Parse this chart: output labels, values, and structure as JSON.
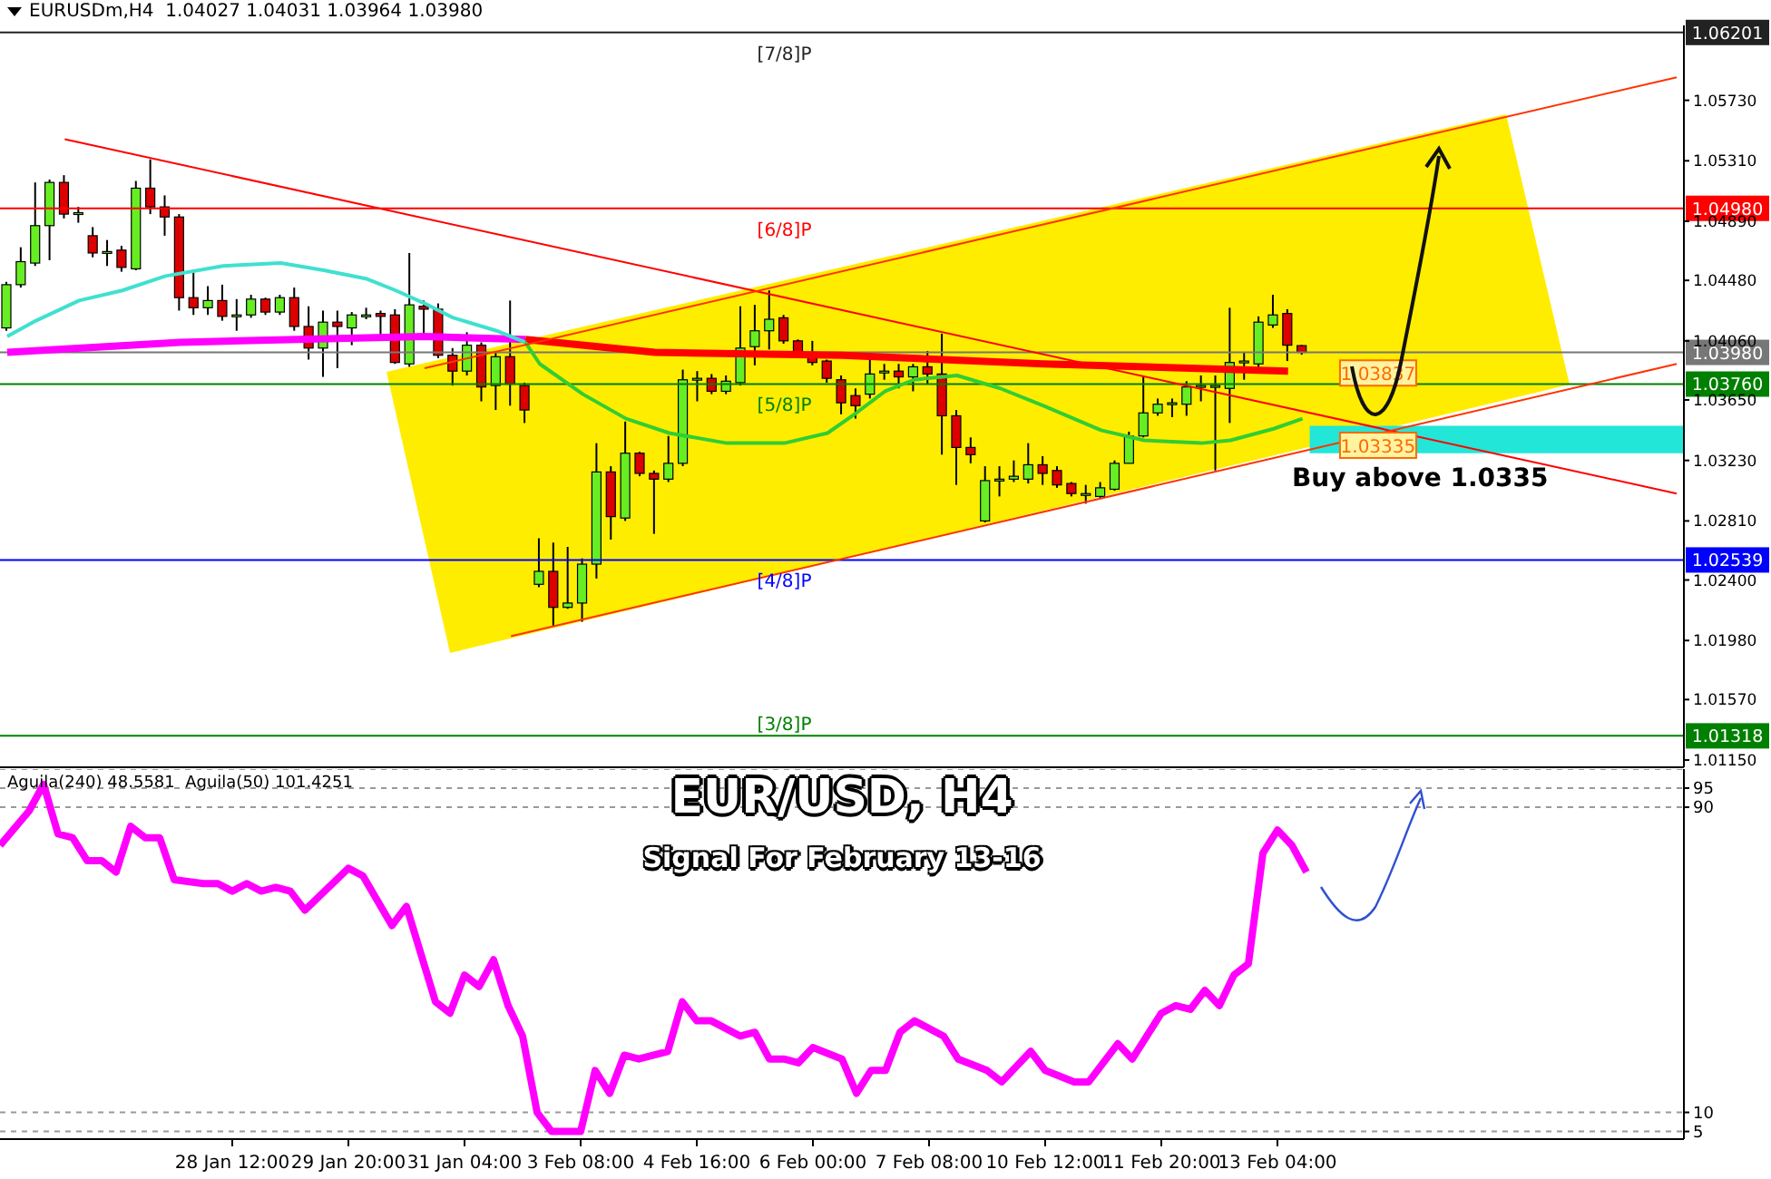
{
  "chart_data": [
    {
      "type": "candlestick",
      "categories": [
        null,
        null,
        null,
        null,
        null,
        null,
        null,
        null,
        null,
        null,
        null,
        null,
        null,
        null,
        null,
        null,
        null,
        null,
        null,
        null,
        null,
        null,
        null,
        null,
        null,
        null,
        null,
        null,
        null,
        null,
        null,
        null,
        null,
        null,
        null,
        null,
        null,
        null,
        null,
        null,
        null,
        null,
        null,
        null,
        null,
        null,
        null,
        null,
        null,
        null,
        null,
        null,
        null,
        null,
        null,
        null,
        null,
        null,
        null,
        null,
        null,
        null,
        null,
        null,
        null,
        null,
        null,
        null,
        null,
        null,
        null,
        null,
        null,
        null,
        null,
        null,
        null,
        null,
        null,
        null,
        null,
        null,
        null,
        null,
        null,
        null,
        null,
        null,
        null,
        null,
        null,
        null,
        null,
        null,
        null,
        null,
        null,
        null,
        null,
        null,
        null,
        null,
        null,
        null,
        null,
        null,
        null,
        null,
        null,
        null,
        null,
        null,
        null,
        null,
        null,
        null,
        null
      ],
      "ohlc": [
        [
          1.0415,
          1.0447,
          1.0413,
          1.0445
        ],
        [
          1.0445,
          1.0471,
          1.0443,
          1.0461
        ],
        [
          1.046,
          1.0516,
          1.0458,
          1.0486
        ],
        [
          1.0486,
          1.0518,
          1.0462,
          1.0516
        ],
        [
          1.0516,
          1.0521,
          1.0491,
          1.0494
        ],
        [
          1.0495,
          1.0499,
          1.0488,
          1.0495
        ],
        [
          1.0479,
          1.0485,
          1.0464,
          1.0467
        ],
        [
          1.0468,
          1.0476,
          1.0458,
          1.0468
        ],
        [
          1.0469,
          1.0472,
          1.0454,
          1.0457
        ],
        [
          1.0456,
          1.0517,
          1.0455,
          1.0512
        ],
        [
          1.0512,
          1.0532,
          1.0494,
          1.0499
        ],
        [
          1.0499,
          1.0507,
          1.0479,
          1.0492
        ],
        [
          1.0492,
          1.0494,
          1.0427,
          1.0436
        ],
        [
          1.0436,
          1.0455,
          1.0424,
          1.0429
        ],
        [
          1.0429,
          1.0444,
          1.0424,
          1.0434
        ],
        [
          1.0434,
          1.0445,
          1.042,
          1.0423
        ],
        [
          1.0424,
          1.0435,
          1.0413,
          1.0424
        ],
        [
          1.0424,
          1.0438,
          1.0422,
          1.0435
        ],
        [
          1.0435,
          1.0436,
          1.0424,
          1.0426
        ],
        [
          1.0426,
          1.0438,
          1.0424,
          1.0436
        ],
        [
          1.0436,
          1.0443,
          1.0413,
          1.0416
        ],
        [
          1.0416,
          1.043,
          1.0393,
          1.0401
        ],
        [
          1.0401,
          1.0427,
          1.0381,
          1.0419
        ],
        [
          1.0419,
          1.0427,
          1.0387,
          1.0416
        ],
        [
          1.0415,
          1.0426,
          1.0403,
          1.0424
        ],
        [
          1.0424,
          1.0429,
          1.0421,
          1.0424
        ],
        [
          1.0425,
          1.0427,
          1.0409,
          1.0423
        ],
        [
          1.0424,
          1.0428,
          1.039,
          1.0391
        ],
        [
          1.039,
          1.0467,
          1.0388,
          1.0431
        ],
        [
          1.043,
          1.0434,
          1.0408,
          1.0428
        ],
        [
          1.0428,
          1.0432,
          1.0394,
          1.0396
        ],
        [
          1.0396,
          1.0401,
          1.0375,
          1.0385
        ],
        [
          1.0385,
          1.0412,
          1.0382,
          1.0403
        ],
        [
          1.0403,
          1.0405,
          1.0364,
          1.0374
        ],
        [
          1.0375,
          1.0398,
          1.0358,
          1.0395
        ],
        [
          1.0395,
          1.0434,
          1.0361,
          1.0376
        ],
        [
          1.0375,
          1.0377,
          1.0349,
          1.0358
        ],
        [
          1.0237,
          1.0269,
          1.0235,
          1.0246
        ],
        [
          1.0246,
          1.0266,
          1.0208,
          1.0221
        ],
        [
          1.0221,
          1.0263,
          1.022,
          1.0224
        ],
        [
          1.0224,
          1.0255,
          1.0211,
          1.0251
        ],
        [
          1.0251,
          1.0335,
          1.0241,
          1.0315
        ],
        [
          1.0315,
          1.0319,
          1.0268,
          1.0284
        ],
        [
          1.0283,
          1.035,
          1.0281,
          1.0328
        ],
        [
          1.0328,
          1.0329,
          1.0312,
          1.0314
        ],
        [
          1.0314,
          1.0316,
          1.0272,
          1.031
        ],
        [
          1.031,
          1.034,
          1.0308,
          1.0321
        ],
        [
          1.0321,
          1.0386,
          1.0319,
          1.0379
        ],
        [
          1.038,
          1.0385,
          1.0364,
          1.038
        ],
        [
          1.038,
          1.0383,
          1.0369,
          1.0371
        ],
        [
          1.0371,
          1.0382,
          1.0369,
          1.0378
        ],
        [
          1.0377,
          1.043,
          1.0375,
          1.0401
        ],
        [
          1.0402,
          1.0431,
          1.0389,
          1.0413
        ],
        [
          1.0413,
          1.0441,
          1.04,
          1.0421
        ],
        [
          1.0422,
          1.0424,
          1.0404,
          1.0406
        ],
        [
          1.0406,
          1.0407,
          1.0396,
          1.0398
        ],
        [
          1.0398,
          1.0406,
          1.0389,
          1.0391
        ],
        [
          1.0392,
          1.0393,
          1.0377,
          1.038
        ],
        [
          1.0379,
          1.0382,
          1.0355,
          1.0363
        ],
        [
          1.0368,
          1.0373,
          1.0352,
          1.0361
        ],
        [
          1.0369,
          1.0395,
          1.0366,
          1.0383
        ],
        [
          1.0385,
          1.039,
          1.0379,
          1.0385
        ],
        [
          1.0385,
          1.039,
          1.0373,
          1.0381
        ],
        [
          1.0381,
          1.039,
          1.0371,
          1.0388
        ],
        [
          1.0388,
          1.0399,
          1.0376,
          1.0383
        ],
        [
          1.0383,
          1.0411,
          1.0327,
          1.0354
        ],
        [
          1.0354,
          1.0358,
          1.0306,
          1.0332
        ],
        [
          1.0332,
          1.0339,
          1.0321,
          1.0327
        ],
        [
          1.0281,
          1.0319,
          1.028,
          1.0309
        ],
        [
          1.031,
          1.0319,
          1.0298,
          1.031
        ],
        [
          1.031,
          1.0323,
          1.0308,
          1.0312
        ],
        [
          1.031,
          1.0335,
          1.0307,
          1.032
        ],
        [
          1.032,
          1.0326,
          1.0306,
          1.0314
        ],
        [
          1.0316,
          1.0319,
          1.0304,
          1.0306
        ],
        [
          1.0307,
          1.0308,
          1.0298,
          1.03
        ],
        [
          1.03,
          1.0306,
          1.0293,
          1.03
        ],
        [
          1.0298,
          1.0308,
          1.0297,
          1.0304
        ],
        [
          1.0303,
          1.0323,
          1.0302,
          1.0321
        ],
        [
          1.0321,
          1.0343,
          1.0321,
          1.034
        ],
        [
          1.034,
          1.0382,
          1.0339,
          1.0356
        ],
        [
          1.0356,
          1.0366,
          1.0354,
          1.0362
        ],
        [
          1.0363,
          1.0366,
          1.0353,
          1.0363
        ],
        [
          1.0362,
          1.0378,
          1.0354,
          1.0374
        ],
        [
          1.0375,
          1.0382,
          1.0364,
          1.0375
        ],
        [
          1.0375,
          1.0382,
          1.0316,
          1.0375
        ],
        [
          1.0373,
          1.0429,
          1.0349,
          1.0391
        ],
        [
          1.0392,
          1.0398,
          1.0379,
          1.0392
        ],
        [
          1.039,
          1.0423,
          1.0387,
          1.0419
        ],
        [
          1.0417,
          1.0438,
          1.0415,
          1.0424
        ],
        [
          1.0425,
          1.0428,
          1.0392,
          1.0403
        ],
        [
          1.04027,
          1.04031,
          1.03964,
          1.0398
        ],
        null,
        null,
        null,
        null,
        null,
        null,
        null,
        null,
        null,
        null,
        null,
        null,
        null,
        null,
        null,
        null,
        null,
        null,
        null,
        null,
        null,
        null,
        null,
        null,
        null,
        null
      ],
      "series": [
        {
          "type": "line",
          "color": "#ff00ff",
          "values": [
            1.0398,
            null,
            null,
            null,
            null,
            null,
            null,
            null,
            null,
            null,
            null,
            null,
            1.0405,
            null,
            null,
            null,
            null,
            null,
            null,
            null,
            null,
            null,
            null,
            null,
            null,
            null,
            null,
            null,
            null,
            1.0409,
            null,
            null,
            null,
            null,
            null,
            null,
            1.0407,
            null,
            null,
            null,
            null,
            null,
            null,
            null,
            null,
            null,
            null,
            null,
            null,
            null,
            null,
            null,
            null,
            null,
            null,
            null,
            null,
            null,
            null,
            null,
            null,
            null,
            null,
            null,
            null,
            null,
            null,
            null,
            null,
            null,
            null,
            null,
            null,
            null,
            null,
            null,
            null,
            null,
            null,
            null,
            null,
            null,
            null,
            null,
            null,
            null,
            null,
            null,
            null,
            null,
            null,
            null,
            null,
            null,
            null,
            null,
            null,
            null,
            null,
            null,
            null,
            null,
            null,
            null,
            null,
            null,
            null,
            null,
            null,
            null,
            null,
            null,
            null,
            null,
            null,
            null,
            null
          ]
        },
        {
          "type": "line",
          "color": "#ff0000",
          "values": [
            null,
            null,
            null,
            null,
            null,
            null,
            null,
            null,
            null,
            null,
            null,
            null,
            null,
            null,
            null,
            null,
            null,
            null,
            null,
            null,
            null,
            null,
            null,
            null,
            null,
            null,
            null,
            null,
            null,
            null,
            null,
            null,
            null,
            null,
            null,
            null,
            1.0407,
            null,
            null,
            null,
            null,
            null,
            null,
            null,
            null,
            1.0398,
            null,
            null,
            null,
            null,
            null,
            null,
            null,
            null,
            null,
            null,
            null,
            null,
            1.0396,
            null,
            null,
            null,
            null,
            null,
            null,
            null,
            null,
            null,
            null,
            null,
            null,
            null,
            1.039,
            null,
            null,
            null,
            null,
            null,
            null,
            null,
            null,
            null,
            null,
            null,
            null,
            null,
            null,
            null,
            null,
            1.0385,
            null,
            null,
            null,
            null,
            null,
            null,
            null,
            null,
            null,
            null,
            null,
            null,
            null,
            null,
            null,
            null,
            null,
            null,
            null,
            null,
            null,
            null,
            null,
            null,
            null,
            null,
            null
          ]
        },
        {
          "type": "line",
          "color": "#40e0d0",
          "values": [
            1.0409,
            null,
            1.042,
            null,
            null,
            1.0434,
            null,
            null,
            1.0441,
            null,
            null,
            1.0451,
            null,
            null,
            null,
            1.0458,
            null,
            null,
            null,
            1.046,
            null,
            null,
            1.0455,
            null,
            null,
            1.0449,
            null,
            1.0441,
            null,
            1.0432,
            null,
            1.0422,
            null,
            null,
            1.0413,
            null,
            1.0405,
            null,
            null,
            null,
            null,
            null,
            null,
            null,
            null,
            null,
            null,
            null,
            null,
            null,
            null,
            null,
            null,
            null,
            null,
            null,
            null,
            null,
            null,
            null,
            null,
            null,
            null,
            null,
            null,
            null,
            null,
            null,
            null,
            null,
            null,
            null,
            null,
            null,
            null,
            null,
            null,
            null,
            null,
            null,
            null,
            null,
            null,
            null,
            null,
            null,
            null,
            null,
            null,
            null,
            null,
            null,
            null,
            null,
            null,
            null,
            null,
            null,
            null,
            null,
            null,
            null,
            null,
            null,
            null,
            null,
            null,
            null,
            null,
            null,
            null,
            null,
            null,
            null,
            null,
            null,
            null
          ]
        },
        {
          "type": "line",
          "color": "#32cd32",
          "values": [
            null,
            null,
            null,
            null,
            null,
            null,
            null,
            null,
            null,
            null,
            null,
            null,
            null,
            null,
            null,
            null,
            null,
            null,
            null,
            null,
            null,
            null,
            null,
            null,
            null,
            null,
            null,
            null,
            null,
            null,
            null,
            null,
            null,
            null,
            null,
            null,
            1.0405,
            1.039,
            null,
            null,
            1.0369,
            null,
            null,
            1.0352,
            null,
            null,
            1.0342,
            null,
            null,
            null,
            1.0335,
            null,
            null,
            null,
            1.0335,
            null,
            null,
            1.0342,
            null,
            1.0356,
            null,
            1.0371,
            null,
            1.0379,
            null,
            null,
            1.0382,
            null,
            null,
            1.0373,
            null,
            null,
            1.0361,
            null,
            null,
            null,
            1.0344,
            null,
            null,
            1.0337,
            null,
            null,
            null,
            1.0335,
            null,
            1.0337,
            null,
            null,
            1.0345,
            null,
            1.0352,
            null,
            null,
            null,
            null,
            null,
            null,
            null,
            null,
            null,
            null,
            null,
            null,
            null,
            null,
            null,
            null,
            null,
            null,
            null,
            null,
            null,
            null,
            null,
            null,
            null,
            null
          ]
        },
        {
          "type": "line",
          "color": "#ff0000",
          "values": [
            null,
            null,
            null,
            null,
            1.0546,
            null,
            null,
            null,
            null,
            null,
            null,
            null,
            null,
            null,
            null,
            null,
            null,
            null,
            null,
            null,
            null,
            null,
            null,
            null,
            null,
            null,
            null,
            null,
            null,
            null,
            null,
            null,
            null,
            null,
            null,
            null,
            null,
            null,
            null,
            null,
            null,
            null,
            null,
            null,
            null,
            null,
            null,
            null,
            null,
            null,
            null,
            null,
            null,
            null,
            null,
            null,
            null,
            null,
            null,
            null,
            null,
            null,
            null,
            null,
            null,
            null,
            null,
            null,
            null,
            null,
            null,
            null,
            null,
            null,
            null,
            null,
            null,
            null,
            null,
            null,
            null,
            null,
            null,
            null,
            null,
            null,
            null,
            null,
            null,
            null,
            null,
            null,
            null,
            null,
            null,
            null,
            null,
            null,
            null,
            null,
            null,
            null,
            null,
            null,
            null,
            null,
            null,
            null,
            null,
            null,
            null,
            null,
            null,
            null,
            null,
            null,
            1.03
          ]
        },
        {
          "type": "line",
          "color": "#ff3300",
          "values": [
            null,
            null,
            null,
            null,
            null,
            null,
            null,
            null,
            null,
            null,
            null,
            null,
            null,
            null,
            null,
            null,
            null,
            null,
            null,
            null,
            null,
            null,
            null,
            null,
            null,
            null,
            null,
            null,
            null,
            1.0387,
            null,
            null,
            null,
            null,
            null,
            null,
            null,
            null,
            null,
            null,
            null,
            null,
            null,
            null,
            null,
            null,
            null,
            null,
            null,
            null,
            null,
            null,
            null,
            null,
            null,
            null,
            null,
            null,
            null,
            null,
            null,
            null,
            null,
            null,
            null,
            null,
            null,
            null,
            null,
            null,
            null,
            null,
            null,
            null,
            null,
            null,
            null,
            null,
            null,
            null,
            null,
            null,
            null,
            null,
            null,
            null,
            null,
            null,
            null,
            null,
            null,
            null,
            null,
            null,
            null,
            null,
            null,
            null,
            null,
            null,
            null,
            null,
            null,
            null,
            null,
            null,
            null,
            null,
            null,
            null,
            null,
            null,
            null,
            null,
            null,
            null,
            1.0589
          ]
        },
        {
          "type": "line",
          "color": "#ff3300",
          "values": [
            null,
            null,
            null,
            null,
            null,
            null,
            null,
            null,
            null,
            null,
            null,
            null,
            null,
            null,
            null,
            null,
            null,
            null,
            null,
            null,
            null,
            null,
            null,
            null,
            null,
            null,
            null,
            null,
            null,
            null,
            null,
            null,
            null,
            null,
            null,
            1.0201,
            null,
            null,
            null,
            null,
            null,
            null,
            null,
            null,
            null,
            null,
            null,
            null,
            null,
            null,
            null,
            null,
            null,
            null,
            null,
            null,
            null,
            null,
            null,
            null,
            null,
            null,
            null,
            null,
            null,
            null,
            null,
            null,
            null,
            null,
            null,
            null,
            null,
            null,
            null,
            null,
            null,
            null,
            null,
            null,
            null,
            null,
            null,
            null,
            null,
            null,
            null,
            null,
            null,
            null,
            null,
            null,
            null,
            null,
            null,
            null,
            null,
            null,
            null,
            null,
            null,
            null,
            null,
            null,
            null,
            null,
            null,
            null,
            null,
            null,
            null,
            null,
            null,
            null,
            null,
            null,
            1.039
          ]
        }
      ],
      "ylim": [
        1.011,
        1.0625
      ],
      "yticks": [
        {
          "value": 1.0573,
          "label": "1.05730"
        },
        {
          "value": 1.0531,
          "label": "1.05310"
        },
        {
          "value": 1.0489,
          "label": "1.04890"
        },
        {
          "value": 1.0448,
          "label": "1.04480"
        },
        {
          "value": 1.0406,
          "label": "1.04060"
        },
        {
          "value": 1.0365,
          "label": "1.03650"
        },
        {
          "value": 1.0323,
          "label": "1.03230"
        },
        {
          "value": 1.0281,
          "label": "1.02810"
        },
        {
          "value": 1.024,
          "label": "1.02400"
        },
        {
          "value": 1.0198,
          "label": "1.01980"
        },
        {
          "value": 1.0157,
          "label": "1.01570"
        },
        {
          "value": 1.0115,
          "label": "1.01150"
        }
      ],
      "tick_labels": "y",
      "ref_lines": [
        {
          "axis": "y",
          "value": 1.06201,
          "label": "1.06201",
          "color": "#222222"
        },
        {
          "axis": "y",
          "value": 1.0498,
          "label": "1.04980",
          "color": "#ff0000"
        },
        {
          "axis": "y",
          "value": 1.0398,
          "label": "1.03980",
          "color": "#777777"
        },
        {
          "axis": "y",
          "value": 1.0376,
          "label": "1.03760",
          "color": "#008000"
        },
        {
          "axis": "y",
          "value": 1.02539,
          "label": "1.02539",
          "color": "#0000ff"
        },
        {
          "axis": "y",
          "value": 1.01318,
          "label": "1.01318",
          "color": "#008000"
        }
      ],
      "bands": [
        {
          "axis": "y",
          "from": 1.0328,
          "to": 1.0347,
          "color": "#22e6d8"
        }
      ],
      "annotations": [
        "EURUSDm,H4  1.04027 1.04031 1.03964 1.03980",
        {
          "text": "[7/8]P",
          "y": 1.06201
        },
        {
          "text": "[6/8]P",
          "y": 1.0498
        },
        {
          "text": "[5/8]P",
          "y": 1.0376
        },
        {
          "text": "[4/8]P",
          "y": 1.02539
        },
        {
          "text": "[3/8]P",
          "y": 1.01318
        },
        {
          "text": "1.03837",
          "y": 1.03837
        },
        {
          "text": "1.03335",
          "y": 1.03335
        },
        "Buy above 1.0335"
      ]
    },
    {
      "type": "line",
      "title": "EUR/USD, H4",
      "subtitle": "Signal For February 13-16",
      "categories": [
        null,
        null,
        null,
        null,
        null,
        null,
        null,
        null,
        null,
        null,
        null,
        null,
        null,
        null,
        null,
        null,
        "28 Jan 12:00",
        null,
        null,
        null,
        null,
        null,
        null,
        null,
        "29 Jan 20:00",
        null,
        null,
        null,
        null,
        null,
        null,
        null,
        "31 Jan 04:00",
        null,
        null,
        null,
        null,
        null,
        null,
        null,
        "3 Feb 08:00",
        null,
        null,
        null,
        null,
        null,
        null,
        null,
        "4 Feb 16:00",
        null,
        null,
        null,
        null,
        null,
        null,
        null,
        "6 Feb 00:00",
        null,
        null,
        null,
        null,
        null,
        null,
        null,
        "7 Feb 08:00",
        null,
        null,
        null,
        null,
        null,
        null,
        null,
        "10 Feb 12:00",
        null,
        null,
        null,
        null,
        null,
        null,
        null,
        "11 Feb 20:00",
        null,
        null,
        null,
        null,
        null,
        null,
        null,
        "13 Feb 04:00",
        null,
        null,
        null,
        null,
        null,
        null,
        null,
        null,
        null,
        null,
        null,
        null,
        null,
        null,
        null,
        null,
        null,
        null,
        null,
        null,
        null,
        null,
        null,
        null,
        null,
        null,
        null,
        null
      ],
      "series": [
        {
          "color": "#ff00ff",
          "values": [
            80,
            null,
            89,
            96,
            83,
            82,
            76,
            76,
            73,
            85,
            82,
            82,
            71,
            null,
            70,
            70,
            68,
            70,
            68,
            69,
            68,
            63,
            null,
            null,
            74,
            72,
            null,
            59,
            64,
            null,
            39,
            36,
            46,
            43,
            50,
            38,
            30,
            10,
            5,
            null,
            5,
            21,
            15,
            25,
            24,
            null,
            26,
            39,
            34,
            34,
            null,
            30,
            31,
            24,
            24,
            23,
            27,
            null,
            24,
            15,
            21,
            21,
            31,
            34,
            null,
            30,
            24,
            null,
            21,
            18,
            null,
            26,
            21,
            null,
            18,
            18,
            null,
            28,
            24,
            null,
            36,
            38,
            37,
            42,
            38,
            46,
            49,
            78,
            84,
            80,
            73,
            null,
            null,
            null,
            null,
            null,
            null,
            null,
            null,
            null,
            null,
            null,
            null,
            null,
            null,
            null,
            null,
            null,
            null,
            null,
            null,
            null,
            null,
            null,
            null,
            null,
            null
          ]
        }
      ],
      "ylim": [
        3,
        100
      ],
      "yticks": [
        5,
        10,
        90,
        95
      ],
      "grid": "y",
      "annotations": [
        "Aguila(240) 48.5581  Aguila(50) 101.4251"
      ]
    }
  ]
}
